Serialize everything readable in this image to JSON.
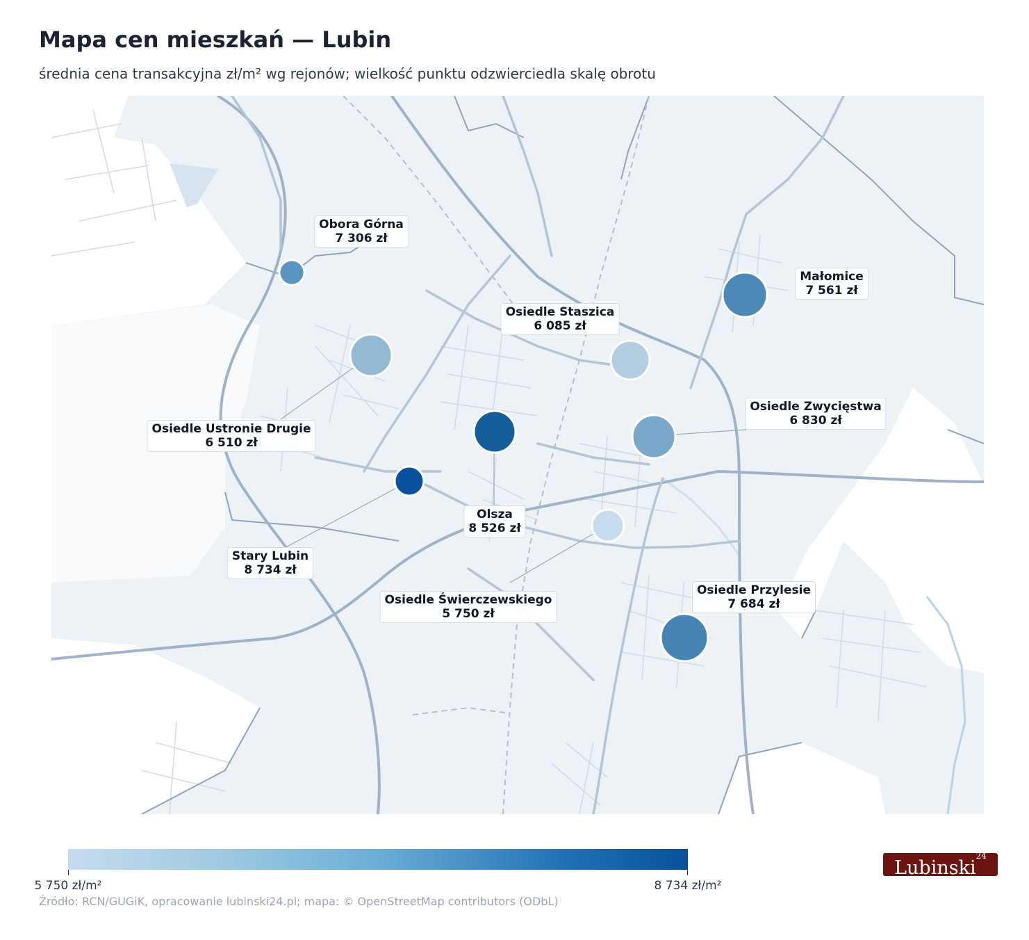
{
  "title": "Mapa cen mieszkań — Lubin",
  "subtitle": "średnia cena transakcyjna zł/m² wg rejonów; wielkość punktu odzwierciedla skalę obrotu",
  "colors": {
    "min": "#c6dbef",
    "max": "#08519c",
    "land": "#edf2f7",
    "roads": "#9fb1c6"
  },
  "districts": [
    {
      "name": "Obora Górna",
      "price": "7 306 zł"
    },
    {
      "name": "Małomice",
      "price": "7 561 zł"
    },
    {
      "name": "Osiedle Staszica",
      "price": "6 085 zł"
    },
    {
      "name": "Osiedle Zwycięstwa",
      "price": "6 830 zł"
    },
    {
      "name": "Osiedle Ustronie Drugie",
      "price": "6 510 zł"
    },
    {
      "name": "Olsza",
      "price": "8 526 zł"
    },
    {
      "name": "Stary Lubin",
      "price": "8 734 zł"
    },
    {
      "name": "Osiedle Świerczewskiego",
      "price": "5 750 zł"
    },
    {
      "name": "Osiedle Przylesie",
      "price": "7 684 zł"
    }
  ],
  "legend": {
    "min_label": "5 750 zł/m²",
    "max_label": "8 734 zł/m²"
  },
  "source": "Źródło: RCN/GUGiK, opracowanie lubinski24.pl; mapa: © OpenStreetMap contributors (ODbL)",
  "logo": {
    "text": "Lubinski",
    "sup": "24"
  }
}
